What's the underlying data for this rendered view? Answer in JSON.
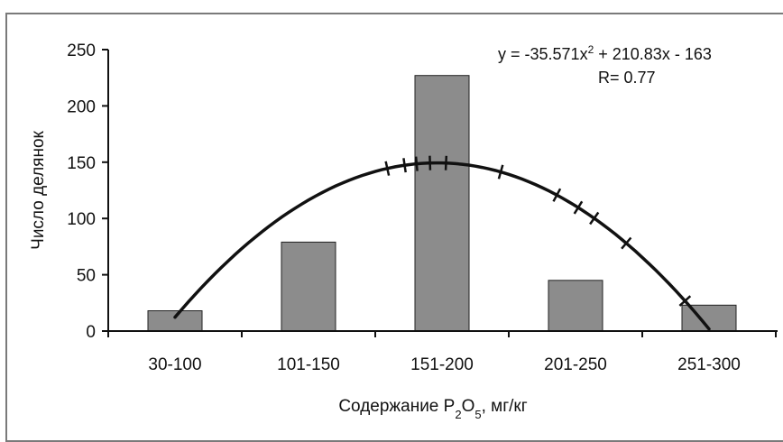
{
  "chart_data": {
    "type": "bar",
    "categories": [
      "30-100",
      "101-150",
      "151-200",
      "201-250",
      "251-300"
    ],
    "values": [
      18,
      79,
      227,
      45,
      23
    ],
    "ylim": [
      0,
      250
    ],
    "yticks": [
      0,
      50,
      100,
      150,
      200,
      250
    ],
    "ytick_labels": [
      "0",
      "50",
      "100",
      "150",
      "200",
      "250"
    ],
    "xlabel_prefix": "Содержание P",
    "xlabel_sub1": "2",
    "xlabel_mid": "O",
    "xlabel_sub2": "5",
    "xlabel_suffix": ", мг/кг",
    "ylabel": "Число делянок",
    "grid": false,
    "legend": "none",
    "bar_color": "#8c8c8c",
    "trendline": {
      "type": "polynomial",
      "order": 2,
      "coefficients": [
        -35.571,
        210.83,
        -163
      ],
      "x_start": 1,
      "x_end": 5,
      "equation_prefix": "y = -35.571x",
      "equation_sup": "2",
      "equation_suffix": " + 210.83x - 163",
      "r_label": "R= 0.77",
      "color": "#111111",
      "hatch_x": [
        2.59,
        2.72,
        2.81,
        2.91,
        3.03,
        3.44,
        3.86,
        4.02,
        4.14,
        4.38,
        4.82
      ]
    }
  }
}
